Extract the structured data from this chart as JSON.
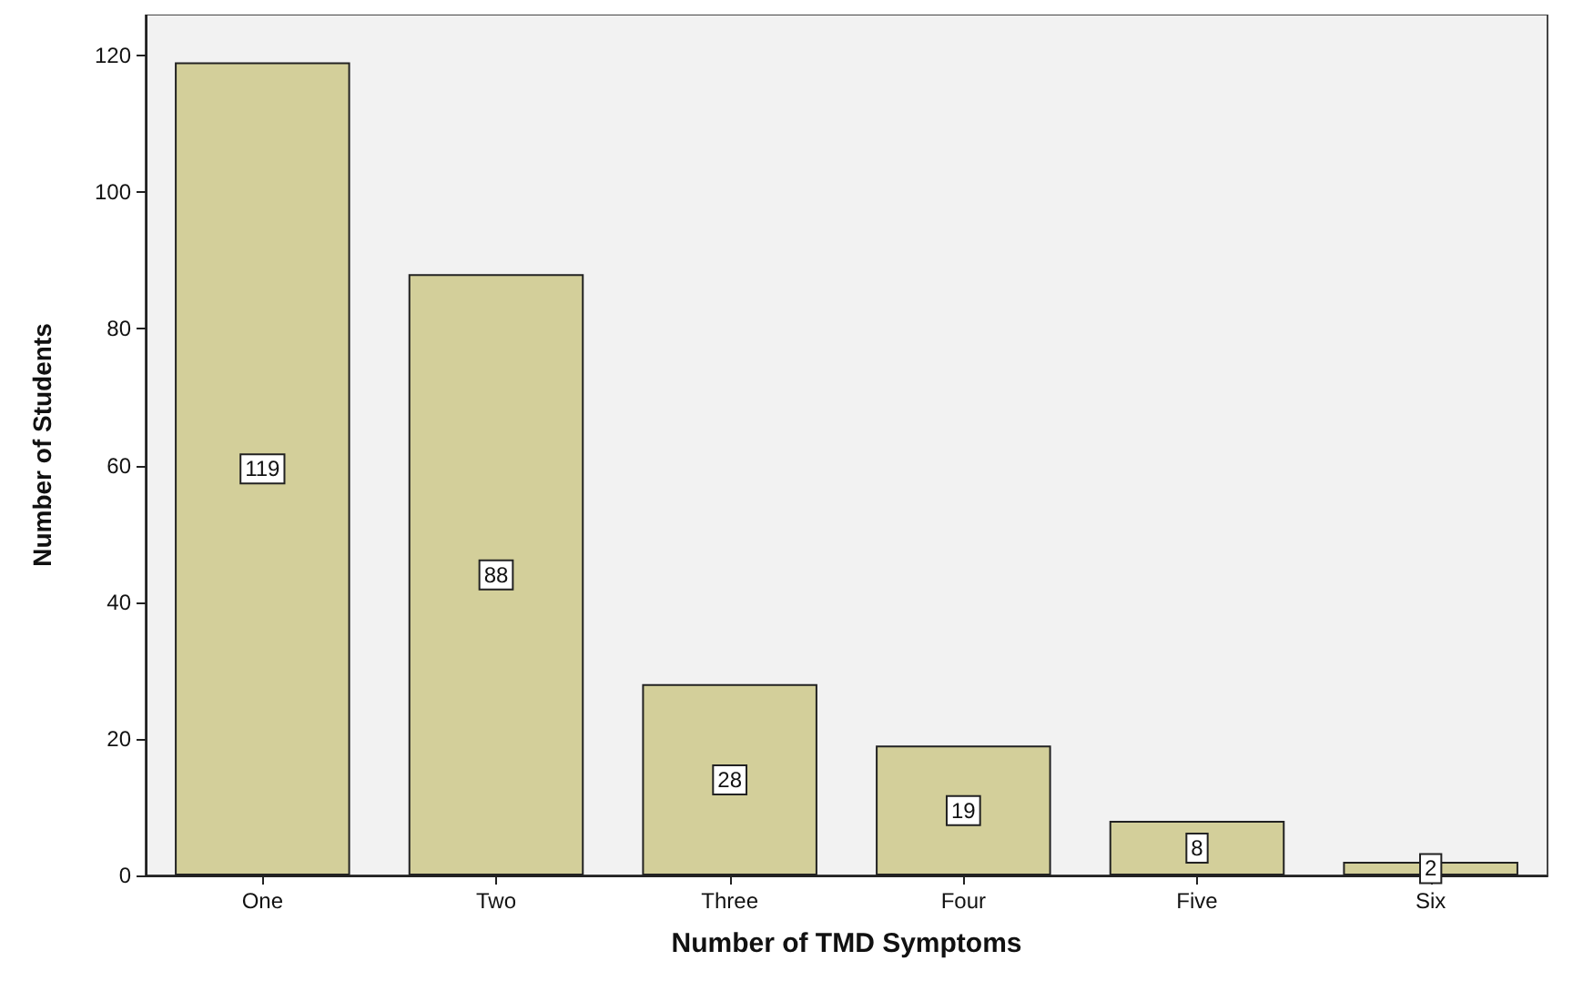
{
  "chart_data": {
    "type": "bar",
    "xlabel": "Number of TMD Symptoms",
    "ylabel": "Number of Students",
    "categories": [
      "One",
      "Two",
      "Three",
      "Four",
      "Five",
      "Six"
    ],
    "values": [
      119,
      88,
      28,
      19,
      8,
      2
    ],
    "color": "#d3cf9a",
    "ylim": [
      0,
      126
    ],
    "yticks": [
      0,
      20,
      40,
      60,
      80,
      100,
      120
    ],
    "grid": false,
    "data_labels": true
  }
}
